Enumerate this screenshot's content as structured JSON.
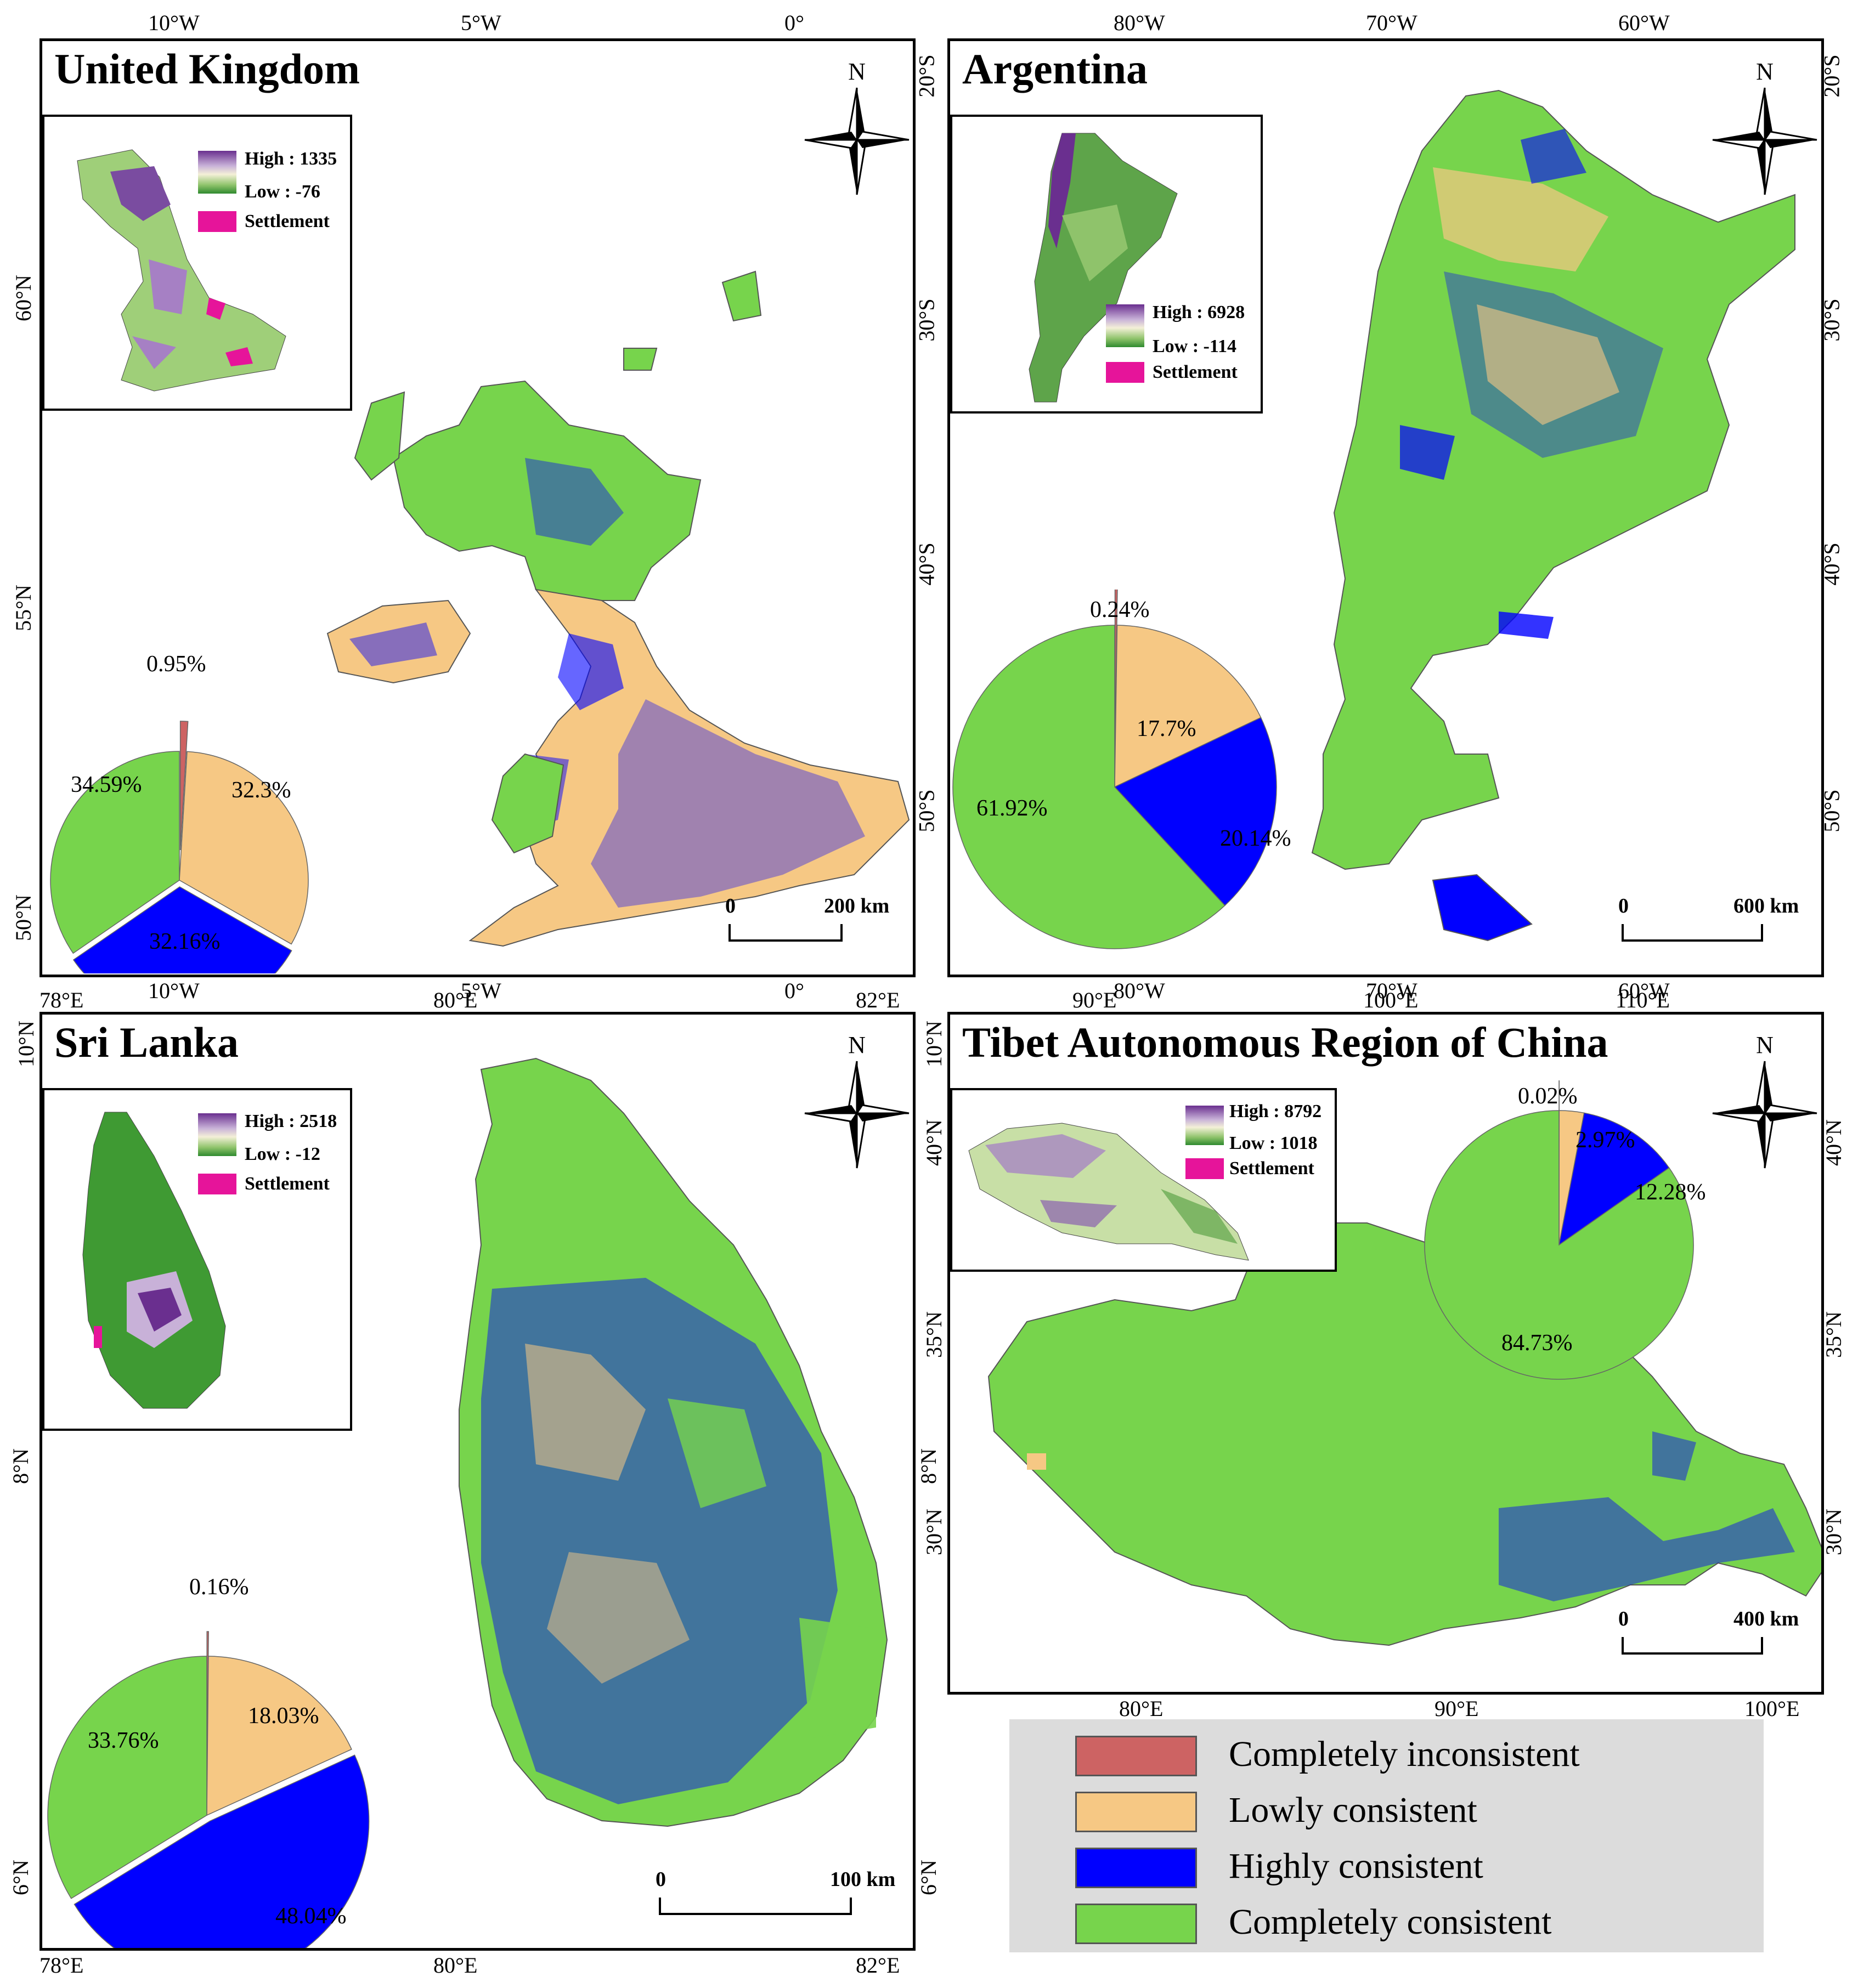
{
  "legend": {
    "items": [
      {
        "label": "Completely inconsistent",
        "color": "#cd6363"
      },
      {
        "label": "Lowly consistent",
        "color": "#f6c884"
      },
      {
        "label": "Highly consistent",
        "color": "#0000ff"
      },
      {
        "label": "Completely consistent",
        "color": "#77d44c"
      }
    ]
  },
  "panels": {
    "uk": {
      "title": "United Kingdom",
      "top_ticks": [
        "10°W",
        "5°W",
        "0°"
      ],
      "bottom_ticks": [
        "10°W",
        "5°W",
        "0°"
      ],
      "left_ticks": [
        "60°N",
        "55°N",
        "50°N"
      ],
      "inset": {
        "high": "High : 1335",
        "low": "Low : -76",
        "settlement": "Settlement"
      },
      "scale": {
        "zero": "0",
        "end": "200 km"
      },
      "north": "N",
      "pie": [
        {
          "label": "0.95%",
          "value": 0.95,
          "class": "Completely inconsistent"
        },
        {
          "label": "32.3%",
          "value": 32.3,
          "class": "Lowly consistent"
        },
        {
          "label": "32.16%",
          "value": 32.16,
          "class": "Highly consistent"
        },
        {
          "label": "34.59%",
          "value": 34.59,
          "class": "Completely consistent"
        }
      ]
    },
    "argentina": {
      "title": "Argentina",
      "top_ticks": [
        "80°W",
        "70°W",
        "60°W"
      ],
      "bottom_ticks": [
        "80°W",
        "70°W",
        "60°W"
      ],
      "left_ticks": [
        "20°S",
        "30°S",
        "40°S",
        "50°S"
      ],
      "right_ticks": [
        "20°S",
        "30°S",
        "40°S",
        "50°S"
      ],
      "inset": {
        "high": "High : 6928",
        "low": "Low : -114",
        "settlement": "Settlement"
      },
      "scale": {
        "zero": "0",
        "end": "600 km"
      },
      "north": "N",
      "pie": [
        {
          "label": "0.24%",
          "value": 0.24,
          "class": "Completely inconsistent"
        },
        {
          "label": "17.7%",
          "value": 17.7,
          "class": "Lowly consistent"
        },
        {
          "label": "20.14%",
          "value": 20.14,
          "class": "Highly consistent"
        },
        {
          "label": "61.92%",
          "value": 61.92,
          "class": "Completely consistent"
        }
      ]
    },
    "srilanka": {
      "title": "Sri Lanka",
      "top_ticks": [
        "78°E",
        "80°E",
        "82°E"
      ],
      "bottom_ticks": [
        "78°E",
        "80°E",
        "82°E"
      ],
      "left_ticks": [
        "10°N",
        "8°N",
        "6°N"
      ],
      "right_ticks": [
        "10°N",
        "8°N",
        "6°N"
      ],
      "inset": {
        "high": "High : 2518",
        "low": "Low : -12",
        "settlement": "Settlement"
      },
      "scale": {
        "zero": "0",
        "end": "100 km"
      },
      "north": "N",
      "pie": [
        {
          "label": "0.16%",
          "value": 0.16,
          "class": "Completely inconsistent"
        },
        {
          "label": "18.03%",
          "value": 18.03,
          "class": "Lowly consistent"
        },
        {
          "label": "48.04%",
          "value": 48.04,
          "class": "Highly consistent"
        },
        {
          "label": "33.76%",
          "value": 33.76,
          "class": "Completely consistent"
        }
      ]
    },
    "tibet": {
      "title": "Tibet Autonomous Region of China",
      "top_ticks": [
        "90°E",
        "100°E",
        "110°E"
      ],
      "bottom_ticks": [
        "80°E",
        "90°E",
        "100°E"
      ],
      "right_ticks": [
        "40°N",
        "35°N",
        "30°N"
      ],
      "left_ticks": [
        "40°N",
        "35°N",
        "30°N"
      ],
      "inset": {
        "high": "High : 8792",
        "low": "Low : 1018",
        "settlement": "Settlement"
      },
      "scale": {
        "zero": "0",
        "end": "400 km"
      },
      "north": "N",
      "pie": [
        {
          "label": "0.02%",
          "value": 0.02,
          "class": "Completely inconsistent"
        },
        {
          "label": "2.97%",
          "value": 2.97,
          "class": "Lowly consistent"
        },
        {
          "label": "12.28%",
          "value": 12.28,
          "class": "Highly consistent"
        },
        {
          "label": "84.73%",
          "value": 84.73,
          "class": "Completely consistent"
        }
      ]
    }
  }
}
